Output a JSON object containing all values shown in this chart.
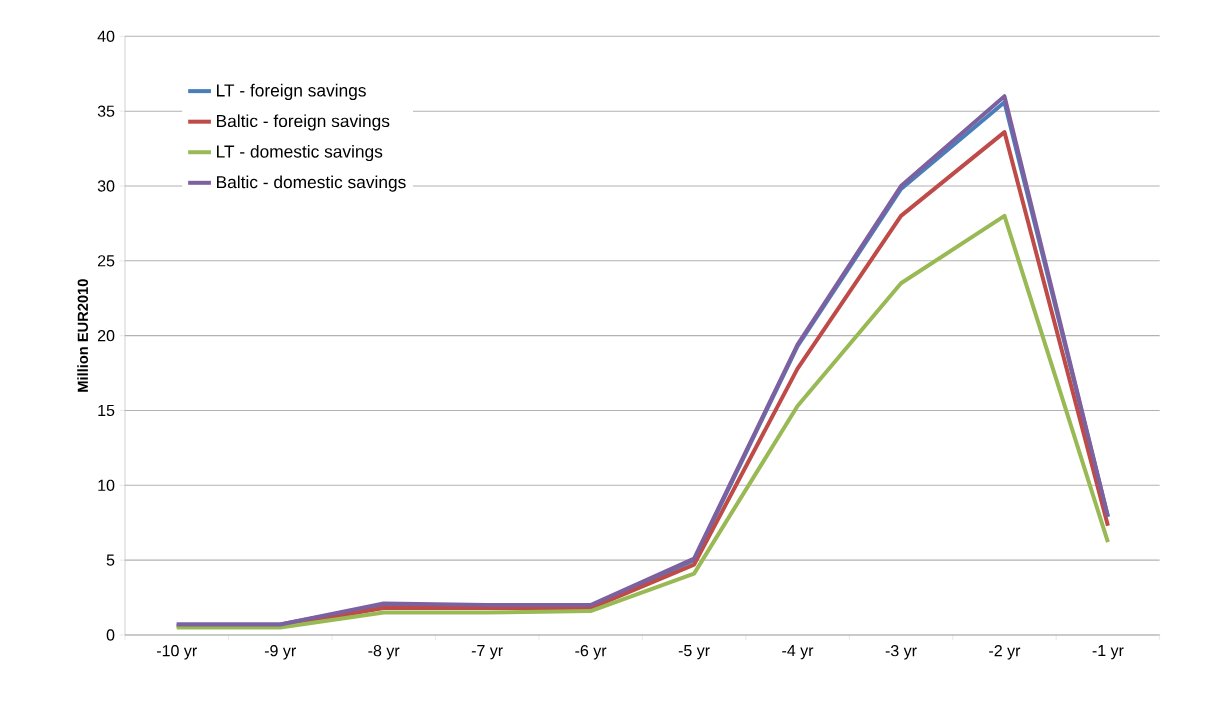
{
  "chart_data": {
    "type": "line",
    "ylabel": "Million EUR2010",
    "categories": [
      "-10 yr",
      "-9 yr",
      "-8 yr",
      "-7 yr",
      "-6 yr",
      "-5 yr",
      "-4 yr",
      "-3 yr",
      "-2 yr",
      "-1 yr"
    ],
    "series": [
      {
        "name": "LT - foreign savings",
        "color": "#4a7ebb",
        "values": [
          0.7,
          0.7,
          2.0,
          1.9,
          1.9,
          5.0,
          19.3,
          29.8,
          35.6,
          7.9
        ]
      },
      {
        "name": "Baltic - foreign savings",
        "color": "#be4b48",
        "values": [
          0.6,
          0.6,
          1.8,
          1.8,
          1.8,
          4.7,
          17.8,
          28.0,
          33.6,
          7.3
        ]
      },
      {
        "name": "LT - domestic savings",
        "color": "#98b954",
        "values": [
          0.5,
          0.5,
          1.5,
          1.5,
          1.6,
          4.1,
          15.3,
          23.5,
          28.0,
          6.2
        ]
      },
      {
        "name": "Baltic - domestic savings",
        "color": "#7d60a0",
        "values": [
          0.7,
          0.7,
          2.1,
          2.0,
          2.0,
          5.1,
          19.4,
          30.0,
          36.0,
          7.9
        ]
      }
    ],
    "ylim": [
      0,
      40
    ],
    "yticks": [
      0,
      5,
      10,
      15,
      20,
      25,
      30,
      35,
      40
    ],
    "grid": "y",
    "legend": "top left"
  }
}
